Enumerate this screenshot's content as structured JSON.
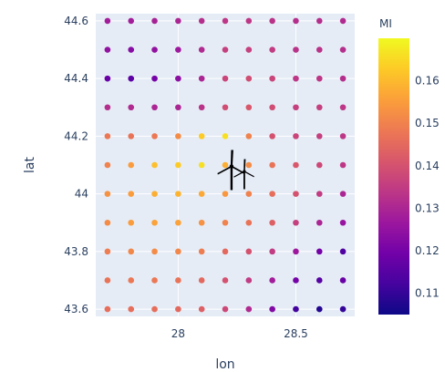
{
  "chart_data": {
    "type": "scatter",
    "xlabel": "lon",
    "ylabel": "lat",
    "xlim": [
      27.65,
      28.75
    ],
    "ylim": [
      43.575,
      44.625
    ],
    "x_ticks": [
      28,
      28.5
    ],
    "x_tick_labels": [
      "28",
      "28.5"
    ],
    "y_ticks": [
      43.6,
      43.8,
      44,
      44.2,
      44.4,
      44.6
    ],
    "y_tick_labels": [
      "43.6",
      "43.8",
      "44",
      "44.2",
      "44.4",
      "44.6"
    ],
    "grid": true,
    "colorbar": {
      "title": "MI",
      "range": [
        0.105,
        0.17
      ],
      "ticks": [
        0.11,
        0.12,
        0.13,
        0.14,
        0.15,
        0.16
      ],
      "tick_labels": [
        "0.11",
        "0.12",
        "0.13",
        "0.14",
        "0.15",
        "0.16"
      ],
      "colorscale": [
        "#0d0887",
        "#46039f",
        "#7201a8",
        "#9c179e",
        "#bd3786",
        "#d8576b",
        "#ed7953",
        "#fb9f3a",
        "#fdca26",
        "#f0f921"
      ]
    },
    "lon": [
      27.7,
      27.8,
      27.9,
      28.0,
      28.1,
      28.2,
      28.3,
      28.4,
      28.5,
      28.6,
      28.7
    ],
    "lat": [
      44.6,
      44.5,
      44.4,
      44.3,
      44.2,
      44.1,
      44.0,
      43.9,
      43.8,
      43.7,
      43.6
    ],
    "mi": [
      [
        0.128,
        0.128,
        0.129,
        0.13,
        0.132,
        0.134,
        0.134,
        0.133,
        0.132,
        0.132,
        0.131
      ],
      [
        0.125,
        0.123,
        0.125,
        0.127,
        0.131,
        0.136,
        0.136,
        0.135,
        0.133,
        0.133,
        0.132
      ],
      [
        0.118,
        0.116,
        0.12,
        0.124,
        0.13,
        0.137,
        0.139,
        0.137,
        0.134,
        0.134,
        0.132
      ],
      [
        0.132,
        0.131,
        0.13,
        0.13,
        0.133,
        0.139,
        0.141,
        0.139,
        0.136,
        0.136,
        0.134
      ],
      [
        0.148,
        0.147,
        0.148,
        0.152,
        0.163,
        0.166,
        0.15,
        0.14,
        0.137,
        0.136,
        0.134
      ],
      [
        0.15,
        0.155,
        0.161,
        0.163,
        0.166,
        0.158,
        0.152,
        0.147,
        0.141,
        0.138,
        0.134
      ],
      [
        0.153,
        0.155,
        0.158,
        0.159,
        0.157,
        0.154,
        0.15,
        0.146,
        0.14,
        0.135,
        0.13
      ],
      [
        0.152,
        0.155,
        0.156,
        0.156,
        0.153,
        0.15,
        0.147,
        0.143,
        0.136,
        0.13,
        0.126
      ],
      [
        0.149,
        0.151,
        0.152,
        0.151,
        0.149,
        0.145,
        0.14,
        0.135,
        0.127,
        0.12,
        0.114
      ],
      [
        0.147,
        0.148,
        0.148,
        0.147,
        0.145,
        0.14,
        0.135,
        0.128,
        0.12,
        0.115,
        0.118
      ],
      [
        0.146,
        0.146,
        0.146,
        0.145,
        0.143,
        0.138,
        0.131,
        0.122,
        0.112,
        0.108,
        0.11
      ]
    ],
    "marker": {
      "icon": "wind-turbines-icon",
      "lon": 28.25,
      "lat": 44.07
    }
  }
}
